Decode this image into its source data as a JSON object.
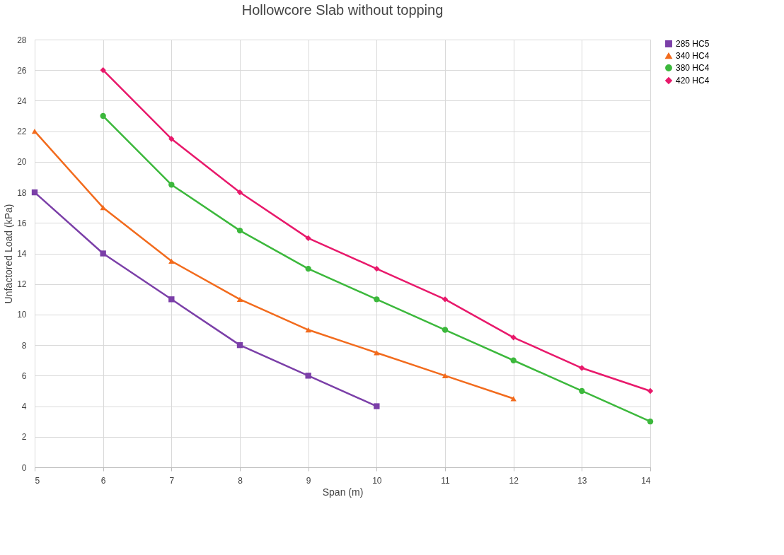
{
  "chart_data": {
    "type": "line",
    "title": "Hollowcore Slab without topping",
    "xlabel": "Span (m)",
    "ylabel": "Unfactored Load (kPa)",
    "series": [
      {
        "name": "285 HC5",
        "color": "#7b3fa8",
        "marker": "square",
        "x": [
          5,
          6,
          7,
          8,
          9,
          10
        ],
        "values": [
          18,
          14,
          11,
          8,
          6,
          4
        ]
      },
      {
        "name": "340 HC4",
        "color": "#f26b1d",
        "marker": "triangle",
        "x": [
          5,
          6,
          7,
          8,
          9,
          10,
          11,
          12
        ],
        "values": [
          22,
          17,
          13.5,
          11,
          9,
          7.5,
          6,
          4.5
        ]
      },
      {
        "name": "380 HC4",
        "color": "#3cb83c",
        "marker": "circle",
        "x": [
          6,
          7,
          8,
          9,
          10,
          11,
          12,
          13,
          14
        ],
        "values": [
          23,
          18.5,
          15.5,
          13,
          11,
          9,
          7,
          5,
          3
        ]
      },
      {
        "name": "420 HC4",
        "color": "#e8196b",
        "marker": "diamond",
        "x": [
          6,
          7,
          8,
          9,
          10,
          11,
          12,
          13,
          14
        ],
        "values": [
          26,
          21.5,
          18,
          15,
          13,
          11,
          8.5,
          6.5,
          5
        ]
      }
    ],
    "xlim": [
      5,
      14
    ],
    "xticks": [
      5,
      6,
      7,
      8,
      9,
      10,
      11,
      12,
      13,
      14
    ],
    "ylim": [
      0,
      28
    ],
    "yticks": [
      0,
      2,
      4,
      6,
      8,
      10,
      12,
      14,
      16,
      18,
      20,
      22,
      24,
      26,
      28
    ],
    "grid": true,
    "legend": "right",
    "line_style": "solid"
  }
}
